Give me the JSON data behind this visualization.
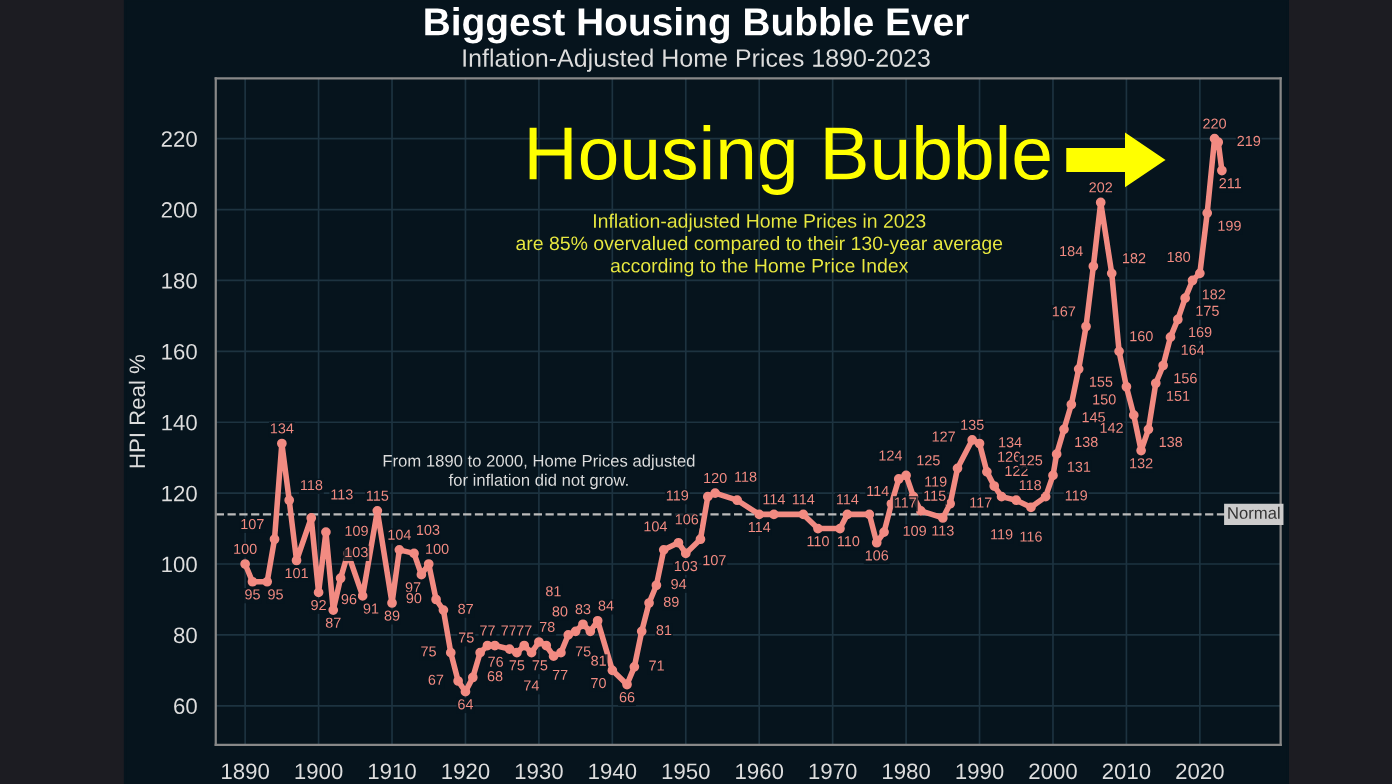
{
  "chart_data": {
    "type": "line",
    "title": "Biggest Housing Bubble Ever",
    "subtitle": "Inflation-Adjusted Home Prices 1890-2023",
    "ylabel": "HPI Real %",
    "series": [
      {
        "color": "#f28b82",
        "x": [
          1890,
          1891,
          1893,
          1894,
          1895,
          1896,
          1897,
          1899,
          1900,
          1901,
          1902,
          1903,
          1904,
          1906,
          1908,
          1910,
          1911,
          1913,
          1914,
          1915,
          1916,
          1917,
          1918,
          1919,
          1920,
          1921,
          1922,
          1923,
          1924,
          1926,
          1927,
          1928,
          1929,
          1930,
          1931,
          1932,
          1933,
          1934,
          1935,
          1936,
          1937,
          1938,
          1940,
          1942,
          1943,
          1944,
          1945,
          1946,
          1947,
          1949,
          1950,
          1952,
          1953,
          1954,
          1957,
          1960,
          1962,
          1966,
          1968,
          1971,
          1972,
          1975,
          1976,
          1977,
          1978,
          1979,
          1980,
          1981,
          1982,
          1985,
          1986,
          1987,
          1989,
          1990,
          1991,
          1992,
          1993,
          1995,
          1997,
          1999,
          2000,
          2000.5,
          2001.5,
          2002.5,
          2003.5,
          2004.5,
          2005.5,
          2006.5,
          2008,
          2009,
          2010,
          2011,
          2012,
          2013,
          2014,
          2015,
          2016,
          2017,
          2018,
          2019,
          2020,
          2021,
          2022,
          2022.5,
          2023
        ],
        "values": [
          100,
          95,
          95,
          107,
          134,
          118,
          101,
          113,
          92,
          109,
          87,
          96,
          103,
          91,
          115,
          89,
          104,
          103,
          97,
          100,
          90,
          87,
          75,
          67,
          64,
          68,
          75,
          77,
          77,
          76,
          75,
          77,
          75,
          78,
          77,
          74,
          75,
          80,
          81,
          83,
          81,
          84,
          70,
          66,
          71,
          81,
          89,
          94,
          104,
          106,
          103,
          107,
          119,
          120,
          118,
          114,
          114,
          114,
          110,
          110,
          114,
          114,
          106,
          109,
          117,
          124,
          125,
          119,
          115,
          113,
          117,
          127,
          135,
          134,
          126,
          122,
          119,
          118,
          116,
          119,
          125,
          131,
          138,
          145,
          155,
          167,
          184,
          202,
          182,
          160,
          150,
          142,
          132,
          138,
          151,
          156,
          164,
          169,
          175,
          180,
          182,
          199,
          220,
          219,
          211
        ]
      }
    ],
    "xlim": [
      1886,
      2031
    ],
    "ylim": [
      49,
      237
    ],
    "xticks": [
      1890,
      1900,
      1910,
      1920,
      1930,
      1940,
      1950,
      1960,
      1970,
      1980,
      1990,
      2000,
      2010,
      2020
    ],
    "yticks": [
      60,
      80,
      100,
      120,
      140,
      160,
      180,
      200,
      220
    ],
    "grid": true,
    "marker": "circle",
    "line_style": "solid",
    "data_labels": true,
    "ref_lines": [
      {
        "axis": "y",
        "value": 114,
        "label": "Normal",
        "color": "#bbbbbb",
        "line_style": "dashed"
      }
    ],
    "annotations": [
      {
        "text": "Housing Bubble",
        "x": 2022,
        "y": 220
      },
      "Inflation-adjusted Home Prices in 2023\nare 85% overvalued compared to their 130-year average\naccording to the Home Price Index",
      "From 1890 to 2000, Home Prices adjusted\nfor inflation did not grow."
    ]
  }
}
